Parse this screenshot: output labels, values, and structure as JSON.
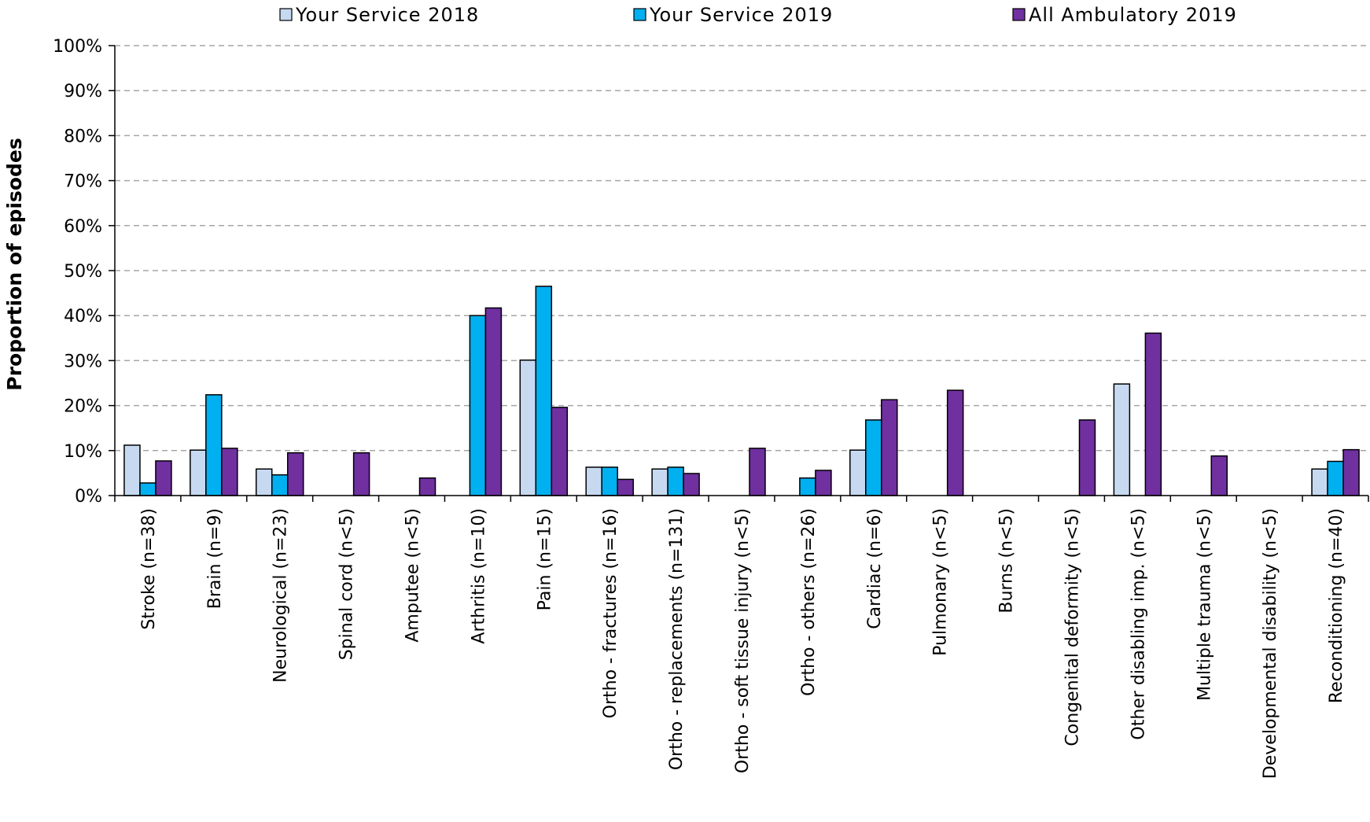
{
  "chart_data": {
    "type": "bar",
    "title": "",
    "xlabel": "",
    "ylabel": "Proportion of episodes",
    "ylim": [
      0,
      100
    ],
    "yticks": [
      "0%",
      "10%",
      "20%",
      "30%",
      "40%",
      "50%",
      "60%",
      "70%",
      "80%",
      "90%",
      "100%"
    ],
    "grid": true,
    "legend_position": "top",
    "categories": [
      "Stroke (n=38)",
      "Brain (n=9)",
      "Neurological (n=23)",
      "Spinal cord (n<5)",
      "Amputee (n<5)",
      "Arthritis (n=10)",
      "Pain (n=15)",
      "Ortho - fractures (n=16)",
      "Ortho - replacements (n=131)",
      "Ortho - soft tissue injury (n<5)",
      "Ortho - others (n=26)",
      "Cardiac (n=6)",
      "Pulmonary (n<5)",
      "Burns (n<5)",
      "Congenital deformity (n<5)",
      "Other disabling imp. (n<5)",
      "Multiple trauma (n<5)",
      "Developmental disability (n<5)",
      "Reconditioning (n=40)"
    ],
    "series": [
      {
        "name": "Your Service 2018",
        "color": "#c6d9f1",
        "values": [
          11.2,
          10.1,
          5.9,
          0,
          0,
          0,
          30.1,
          6.3,
          5.9,
          0,
          0,
          10.1,
          0,
          0,
          0,
          24.8,
          0,
          0,
          5.9
        ]
      },
      {
        "name": "Your Service 2019",
        "color": "#00b0f0",
        "values": [
          2.8,
          22.4,
          4.6,
          0,
          0,
          40.0,
          46.5,
          6.3,
          6.3,
          0,
          3.9,
          16.8,
          0,
          0,
          0,
          0,
          0,
          0,
          7.6
        ]
      },
      {
        "name": "All Ambulatory 2019",
        "color": "#7030a0",
        "values": [
          7.7,
          10.5,
          9.5,
          9.5,
          3.9,
          41.7,
          19.6,
          3.6,
          4.9,
          10.5,
          5.6,
          21.3,
          23.4,
          0,
          16.8,
          36.1,
          8.8,
          0,
          10.2
        ]
      }
    ]
  }
}
